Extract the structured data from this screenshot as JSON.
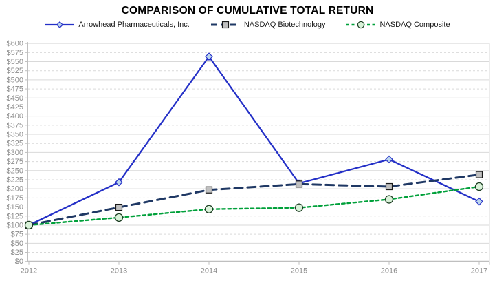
{
  "title": "COMPARISON OF CUMULATIVE TOTAL RETURN",
  "chart_data": {
    "type": "line",
    "title": "COMPARISON OF CUMULATIVE TOTAL RETURN",
    "x": [
      "2012",
      "2013",
      "2014",
      "2015",
      "2016",
      "2017"
    ],
    "series": [
      {
        "name": "Arrowhead Pharmaceuticals, Inc.",
        "values": [
          100,
          218,
          564,
          215,
          281,
          165
        ],
        "color": "#2430C7",
        "line_style": "solid",
        "marker": "diamond",
        "marker_fill": "#BDD7EE",
        "marker_stroke": "#2430C7"
      },
      {
        "name": "NASDAQ Biotechnology",
        "values": [
          100,
          149,
          197,
          213,
          206,
          239
        ],
        "color": "#1F3864",
        "line_style": "long-dash",
        "marker": "square",
        "marker_fill": "#C0C0C0",
        "marker_stroke": "#1a1a1a"
      },
      {
        "name": "NASDAQ Composite",
        "values": [
          100,
          121,
          144,
          148,
          171,
          206
        ],
        "color": "#00A03A",
        "line_style": "short-dash",
        "marker": "circle",
        "marker_fill": "#D9F2D9",
        "marker_stroke": "#1c3d22"
      }
    ],
    "ylim": [
      0,
      600
    ],
    "ytick_step": 25,
    "y_tick_prefix": "$",
    "grid": "horizontal-alternating-solid-dashed",
    "legend_position": "top"
  },
  "axes": {
    "y_tick_labels": [
      "$0",
      "$25",
      "$50",
      "$75",
      "$100",
      "$125",
      "$150",
      "$175",
      "$200",
      "$225",
      "$250",
      "$275",
      "$300",
      "$325",
      "$350",
      "$375",
      "$400",
      "$425",
      "$450",
      "$475",
      "$500",
      "$525",
      "$550",
      "$575",
      "$600"
    ],
    "x_tick_labels": [
      "2012",
      "2013",
      "2014",
      "2015",
      "2016",
      "2017"
    ]
  },
  "colors": {
    "gridline": "#D9D9D9",
    "axis_line": "#BFBFBF",
    "axis_text": "#8C8C8C",
    "title_text": "#000000",
    "legend_text": "#1A1A1A"
  }
}
